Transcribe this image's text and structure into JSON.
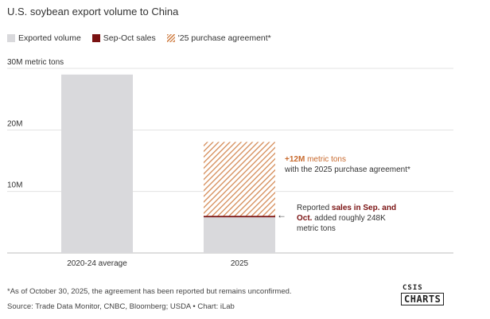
{
  "title": "U.S. soybean export volume to China",
  "legend": {
    "exported": "Exported volume",
    "sep_oct": "Sep-Oct sales",
    "agreement": "'25 purchase agreement*"
  },
  "colors": {
    "exported": "#d9d9dc",
    "sep_oct": "#7a1212",
    "agreement": "#d48a55"
  },
  "chart_data": {
    "type": "bar",
    "title": "U.S. soybean export volume to China",
    "ylabel": "30M metric tons",
    "categories": [
      "2020-24 average",
      "2025"
    ],
    "series": [
      {
        "name": "Exported volume",
        "values": [
          29.0,
          5.8
        ]
      },
      {
        "name": "Sep-Oct sales",
        "values": [
          0,
          0.248
        ]
      },
      {
        "name": "'25 purchase agreement*",
        "values": [
          0,
          12.0
        ]
      }
    ],
    "ylim": [
      0,
      30
    ],
    "yticks": [
      {
        "value": 30,
        "label": "30M metric tons"
      },
      {
        "value": 20,
        "label": "20M"
      },
      {
        "value": 10,
        "label": "10M"
      }
    ],
    "grid": true
  },
  "annotations": {
    "top_line1_bold": "+12M",
    "top_line1_rest": " metric tons",
    "top_line2": "with the 2025 purchase agreement*",
    "bottom_pre": "Reported ",
    "bottom_bold1": "sales in Sep. and",
    "bottom_bold2": "Oct.",
    "bottom_rest": " added roughly 248K",
    "bottom_line3": "metric tons",
    "arrow": "←"
  },
  "footnote": "*As of October 30, 2025, the agreement has been reported but remains unconfirmed.",
  "source": "Source: Trade Data Monitor, CNBC, Bloomberg; USDA • Chart: iLab",
  "logo": {
    "top": "CSIS",
    "bottom": "CHARTS"
  }
}
